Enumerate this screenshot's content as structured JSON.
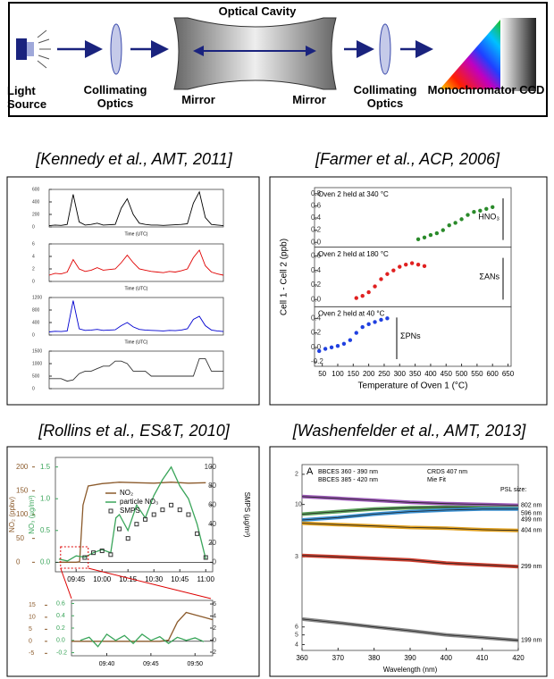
{
  "diagram": {
    "title": "Optical Cavity",
    "components": [
      "Light Source",
      "Collimating Optics",
      "Mirror",
      "Mirror",
      "Collimating Optics",
      "Monochromator CCD"
    ]
  },
  "citations": [
    "[Kennedy et al., AMT, 2011]",
    "[Farmer et al., ACP, 2006]",
    "[Rollins et al., ES&T, 2010]",
    "[Washenfelder  et al., AMT, 2013]"
  ],
  "chart_data": [
    {
      "type": "line",
      "x": [
        0,
        1,
        2,
        3,
        4,
        5,
        6,
        7,
        8,
        9,
        10,
        11,
        12,
        13,
        14,
        15,
        16,
        17,
        18,
        19,
        20,
        21,
        22,
        23,
        24,
        25,
        26,
        27,
        28,
        29
      ],
      "xlim": [
        0,
        29
      ],
      "xlabel": "Time (UTC)",
      "panels": [
        {
          "color": "#000000",
          "ylim": [
            0,
            600
          ],
          "yticks": [
            0,
            200,
            400,
            600
          ],
          "values": [
            20,
            30,
            25,
            40,
            520,
            80,
            30,
            40,
            60,
            30,
            35,
            40,
            300,
            450,
            200,
            60,
            40,
            30,
            30,
            25,
            30,
            35,
            40,
            50,
            380,
            560,
            150,
            40,
            30,
            20
          ]
        },
        {
          "color": "#e00000",
          "ylim": [
            0,
            6
          ],
          "yticks": [
            0,
            2,
            4,
            6
          ],
          "values": [
            1.0,
            1.3,
            1.2,
            1.5,
            3.5,
            2.0,
            1.6,
            1.8,
            2.2,
            1.8,
            1.9,
            2.0,
            3.0,
            4.2,
            3.0,
            2.0,
            1.8,
            1.6,
            1.5,
            1.4,
            1.6,
            1.5,
            1.7,
            2.0,
            3.8,
            5.0,
            2.5,
            1.5,
            1.2,
            1.0
          ]
        },
        {
          "color": "#0000d0",
          "ylim": [
            0,
            1200
          ],
          "yticks": [
            0,
            400,
            800,
            1200
          ],
          "values": [
            100,
            120,
            110,
            130,
            1100,
            200,
            150,
            160,
            180,
            150,
            160,
            170,
            300,
            400,
            260,
            180,
            160,
            150,
            140,
            130,
            150,
            140,
            160,
            200,
            500,
            600,
            300,
            160,
            130,
            110
          ]
        },
        {
          "color": "#333333",
          "ylim": [
            0,
            1500
          ],
          "yticks": [
            0,
            500,
            1000,
            1500
          ],
          "values": [
            400,
            400,
            400,
            300,
            350,
            600,
            700,
            700,
            800,
            900,
            900,
            1100,
            1100,
            1000,
            700,
            700,
            700,
            500,
            500,
            500,
            500,
            500,
            500,
            500,
            500,
            1200,
            1200,
            700,
            700,
            700
          ]
        }
      ]
    },
    {
      "type": "scatter",
      "xlim": [
        25,
        660
      ],
      "xticks": [
        50,
        100,
        150,
        200,
        250,
        300,
        350,
        400,
        450,
        500,
        550,
        600,
        650
      ],
      "xlabel": "Temperature of Oven 1 (°C)",
      "ylabel": "Cell 1 - Cell 2 (ppb)",
      "panels": [
        {
          "annotation": "Oven 2 held at 340 °C",
          "label": "HNO₃",
          "color": "#2a8a2a",
          "ylim": [
            -0.08,
            0.9
          ],
          "yticks": [
            0.8,
            0.6,
            0.4,
            0.2,
            {
              "value": 0,
              "label": "0.0"
            }
          ],
          "x": [
            360,
            380,
            400,
            420,
            440,
            460,
            480,
            500,
            520,
            540,
            560,
            580,
            600
          ],
          "values": [
            0.05,
            0.08,
            0.12,
            0.15,
            0.2,
            0.28,
            0.32,
            0.38,
            0.45,
            0.5,
            0.52,
            0.55,
            0.58
          ]
        },
        {
          "annotation": "Oven 2 held at 180 °C",
          "label": "ΣANs",
          "color": "#e02020",
          "ylim": [
            -0.1,
            0.72
          ],
          "yticks": [
            0.6,
            0.4,
            0.2,
            {
              "value": 0,
              "label": "0.0"
            }
          ],
          "x": [
            160,
            180,
            200,
            220,
            240,
            260,
            280,
            300,
            320,
            340,
            360,
            380
          ],
          "values": [
            0.02,
            0.05,
            0.1,
            0.18,
            0.28,
            0.35,
            0.4,
            0.45,
            0.48,
            0.5,
            0.48,
            0.46
          ]
        },
        {
          "annotation": "Oven 2 held at 40 °C",
          "label": "ΣPNs",
          "color": "#2040e0",
          "ylim": [
            -0.26,
            0.56
          ],
          "yticks": [
            0.4,
            0.2,
            {
              "value": 0,
              "label": "0.0"
            },
            -0.2
          ],
          "x": [
            40,
            60,
            80,
            100,
            120,
            140,
            160,
            180,
            200,
            220,
            240,
            260
          ],
          "values": [
            -0.05,
            -0.02,
            0.0,
            0.02,
            0.05,
            0.1,
            0.2,
            0.28,
            0.32,
            0.35,
            0.38,
            0.4
          ]
        }
      ]
    },
    {
      "type": "line",
      "xlim": [
        33,
        124
      ],
      "xticks": [
        {
          "value": 45,
          "label": "09:45"
        },
        {
          "value": 60,
          "label": "10:00"
        },
        {
          "value": 75,
          "label": "10:15"
        },
        {
          "value": 90,
          "label": "10:30"
        },
        {
          "value": 105,
          "label": "10:45"
        },
        {
          "value": 120,
          "label": "11:00"
        }
      ],
      "ylabel": "NO₂ (ppbv)",
      "ylim": [
        -20,
        220
      ],
      "yticks": [
        0,
        50,
        100,
        150,
        200
      ],
      "y2label": "NO₃ (µg/m³)",
      "y2lim": [
        -0.15,
        1.65
      ],
      "y2ticks": [
        {
          "value": 0,
          "label": "0.0"
        },
        0.5,
        {
          "value": 1,
          "label": "1.0"
        },
        1.5
      ],
      "y3label": "SMPS (µg/m³)",
      "y3lim": [
        -10,
        110
      ],
      "y3ticks": [
        0,
        20,
        40,
        60,
        80,
        100
      ],
      "series": [
        {
          "name": "NO₂",
          "color": "#8b5a2b",
          "axis": "y",
          "x": [
            35,
            40,
            45,
            47,
            49,
            52,
            60,
            70,
            80,
            90,
            100,
            110,
            120
          ],
          "values": [
            0,
            0,
            0,
            1,
            120,
            160,
            165,
            168,
            167,
            166,
            168,
            166,
            167
          ]
        },
        {
          "name": "particle NO₃",
          "color": "#3aa55a",
          "axis": "y2",
          "x": [
            35,
            40,
            45,
            50,
            55,
            60,
            65,
            68,
            70,
            75,
            80,
            85,
            90,
            95,
            100,
            105,
            110,
            115,
            120
          ],
          "values": [
            0.05,
            0.02,
            0.1,
            0.08,
            0.15,
            0.2,
            0.15,
            0.7,
            0.75,
            0.5,
            0.9,
            0.7,
            1.05,
            1.3,
            1.5,
            1.2,
            1.0,
            0.6,
            0.05
          ]
        },
        {
          "name": "SMPS",
          "color": "#333333",
          "axis": "y3",
          "marker": "square",
          "x": [
            50,
            55,
            60,
            65,
            70,
            75,
            80,
            85,
            90,
            95,
            100,
            105,
            110,
            115,
            120
          ],
          "values": [
            5,
            10,
            12,
            8,
            35,
            25,
            40,
            45,
            50,
            55,
            60,
            55,
            50,
            30,
            5
          ]
        }
      ],
      "inset": {
        "xlim": [
          36,
          52
        ],
        "xticks": [
          {
            "value": 40,
            "label": "09:40"
          },
          {
            "value": 45,
            "label": "09:45"
          },
          {
            "value": 50,
            "label": "09:50"
          }
        ],
        "ylim": [
          -6,
          17
        ],
        "yticks": [
          -5,
          0,
          5,
          10,
          15
        ],
        "y2lim": [
          -0.25,
          0.65
        ],
        "y2ticks": [
          -0.2,
          {
            "value": 0,
            "label": "0.0"
          },
          0.2,
          0.4,
          0.6
        ],
        "y3lim": [
          -2.6,
          6.6
        ],
        "y3ticks": [
          -2,
          0,
          2,
          4,
          6
        ],
        "series": [
          {
            "color": "#8b5a2b",
            "axis": "y",
            "x": [
              36,
              38,
              40,
              42,
              44,
              46,
              47,
              48,
              49,
              50,
              51,
              52
            ],
            "values": [
              0,
              0,
              0,
              0,
              0,
              0,
              0.5,
              8,
              12,
              11,
              10,
              9
            ]
          },
          {
            "color": "#3aa55a",
            "axis": "y2",
            "x": [
              37,
              38,
              39,
              40,
              41,
              42,
              43,
              44,
              45,
              46,
              47,
              48,
              49,
              50,
              51
            ],
            "values": [
              0.0,
              0.05,
              -0.1,
              0.1,
              0.0,
              0.08,
              -0.05,
              0.1,
              0.0,
              0.06,
              -0.05,
              0.05,
              0.0,
              0.04,
              -0.02
            ]
          }
        ]
      }
    },
    {
      "type": "line",
      "panel_label": "A",
      "ylog": true,
      "x": [
        360,
        370,
        380,
        390,
        400,
        410,
        420
      ],
      "xlim": [
        360,
        420
      ],
      "xticks": [
        360,
        370,
        380,
        390,
        400,
        410,
        420
      ],
      "xlabel": "Wavelength (nm)",
      "ylim": [
        0.35,
        25
      ],
      "yticks": [
        {
          "value": 20,
          "label": "2"
        },
        10,
        3,
        {
          "value": 0.6,
          "label": "6"
        },
        {
          "value": 0.5,
          "label": "5"
        },
        {
          "value": 0.4,
          "label": "4"
        }
      ],
      "legend": [
        "BBCES 360 - 390 nm",
        "CRDS 407 nm",
        "BBCES 385 - 420 nm",
        "Mie Fit"
      ],
      "psl_label": "PSL size:",
      "series": [
        {
          "name": "802 nm",
          "color": "#9b59b6",
          "values": [
            12,
            11.5,
            11,
            10.5,
            10.2,
            10,
            9.8
          ]
        },
        {
          "name": "596 nm",
          "color": "#5aa05a",
          "values": [
            8,
            8.5,
            9,
            9.3,
            9.4,
            9.3,
            9.2
          ]
        },
        {
          "name": "499 nm",
          "color": "#3a8fd0",
          "values": [
            7,
            7.4,
            8,
            8.5,
            8.8,
            9,
            9
          ]
        },
        {
          "name": "404 nm",
          "color": "#e0a020",
          "values": [
            6.5,
            6.3,
            6.1,
            5.9,
            5.8,
            5.6,
            5.5
          ]
        },
        {
          "name": "299 nm",
          "color": "#d04030",
          "values": [
            3.1,
            3.0,
            2.9,
            2.8,
            2.6,
            2.5,
            2.4
          ]
        },
        {
          "name": "199 nm",
          "color": "#888888",
          "values": [
            0.72,
            0.66,
            0.6,
            0.55,
            0.5,
            0.47,
            0.44
          ]
        }
      ]
    }
  ]
}
